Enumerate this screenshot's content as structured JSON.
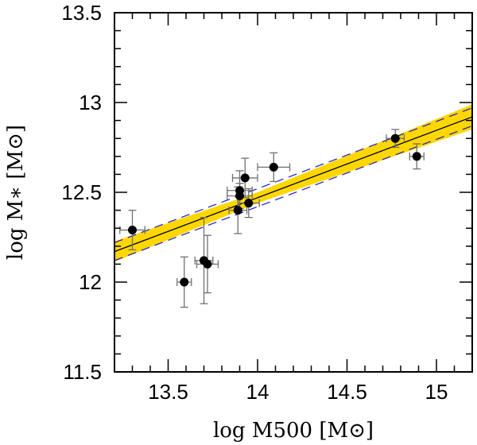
{
  "chart_data": {
    "type": "scatter",
    "title": "",
    "xlabel": "log M500 [M⊙]",
    "ylabel": "log M∗ [M⊙]",
    "xlim": [
      13.2,
      15.2
    ],
    "ylim": [
      11.5,
      13.5
    ],
    "xticks": [
      13.5,
      14,
      14.5,
      15
    ],
    "xtick_labels": [
      "13.5",
      "14",
      "14.5",
      "15"
    ],
    "yticks": [
      11.5,
      12,
      12.5,
      13,
      13.5
    ],
    "ytick_labels": [
      "11.5",
      "12",
      "12.5",
      "13",
      "13.5"
    ],
    "grid": false,
    "points": [
      {
        "x": 13.3,
        "y": 12.29,
        "xerr": 0.07,
        "yerr": 0.11
      },
      {
        "x": 13.59,
        "y": 12.0,
        "xerr": 0.04,
        "yerr": 0.14
      },
      {
        "x": 13.7,
        "y": 12.12,
        "xerr": 0.05,
        "yerr": 0.24
      },
      {
        "x": 13.72,
        "y": 12.1,
        "xerr": 0.06,
        "yerr": 0.16
      },
      {
        "x": 13.89,
        "y": 12.4,
        "xerr": 0.05,
        "yerr": 0.13
      },
      {
        "x": 13.9,
        "y": 12.51,
        "xerr": 0.07,
        "yerr": 0.11
      },
      {
        "x": 13.9,
        "y": 12.48,
        "xerr": 0.07,
        "yerr": 0.07
      },
      {
        "x": 13.93,
        "y": 12.58,
        "xerr": 0.07,
        "yerr": 0.11
      },
      {
        "x": 13.95,
        "y": 12.44,
        "xerr": 0.06,
        "yerr": 0.08
      },
      {
        "x": 14.09,
        "y": 12.64,
        "xerr": 0.09,
        "yerr": 0.08
      },
      {
        "x": 14.77,
        "y": 12.8,
        "xerr": 0.05,
        "yerr": 0.05
      },
      {
        "x": 14.89,
        "y": 12.7,
        "xerr": 0.04,
        "yerr": 0.07
      }
    ],
    "fit": {
      "x_range": [
        13.2,
        15.2
      ],
      "y_range": [
        12.17,
        12.92
      ],
      "dashed_offset": 0.05,
      "band_halfwidth_ends": 0.07,
      "band_halfwidth_center": 0.03,
      "band_center_x": 14.0
    },
    "colors": {
      "band": "#ffd700",
      "fit_line": "#000000",
      "dashed": "#1a1acc",
      "points": "#000000",
      "errorbars": "#707070"
    }
  }
}
